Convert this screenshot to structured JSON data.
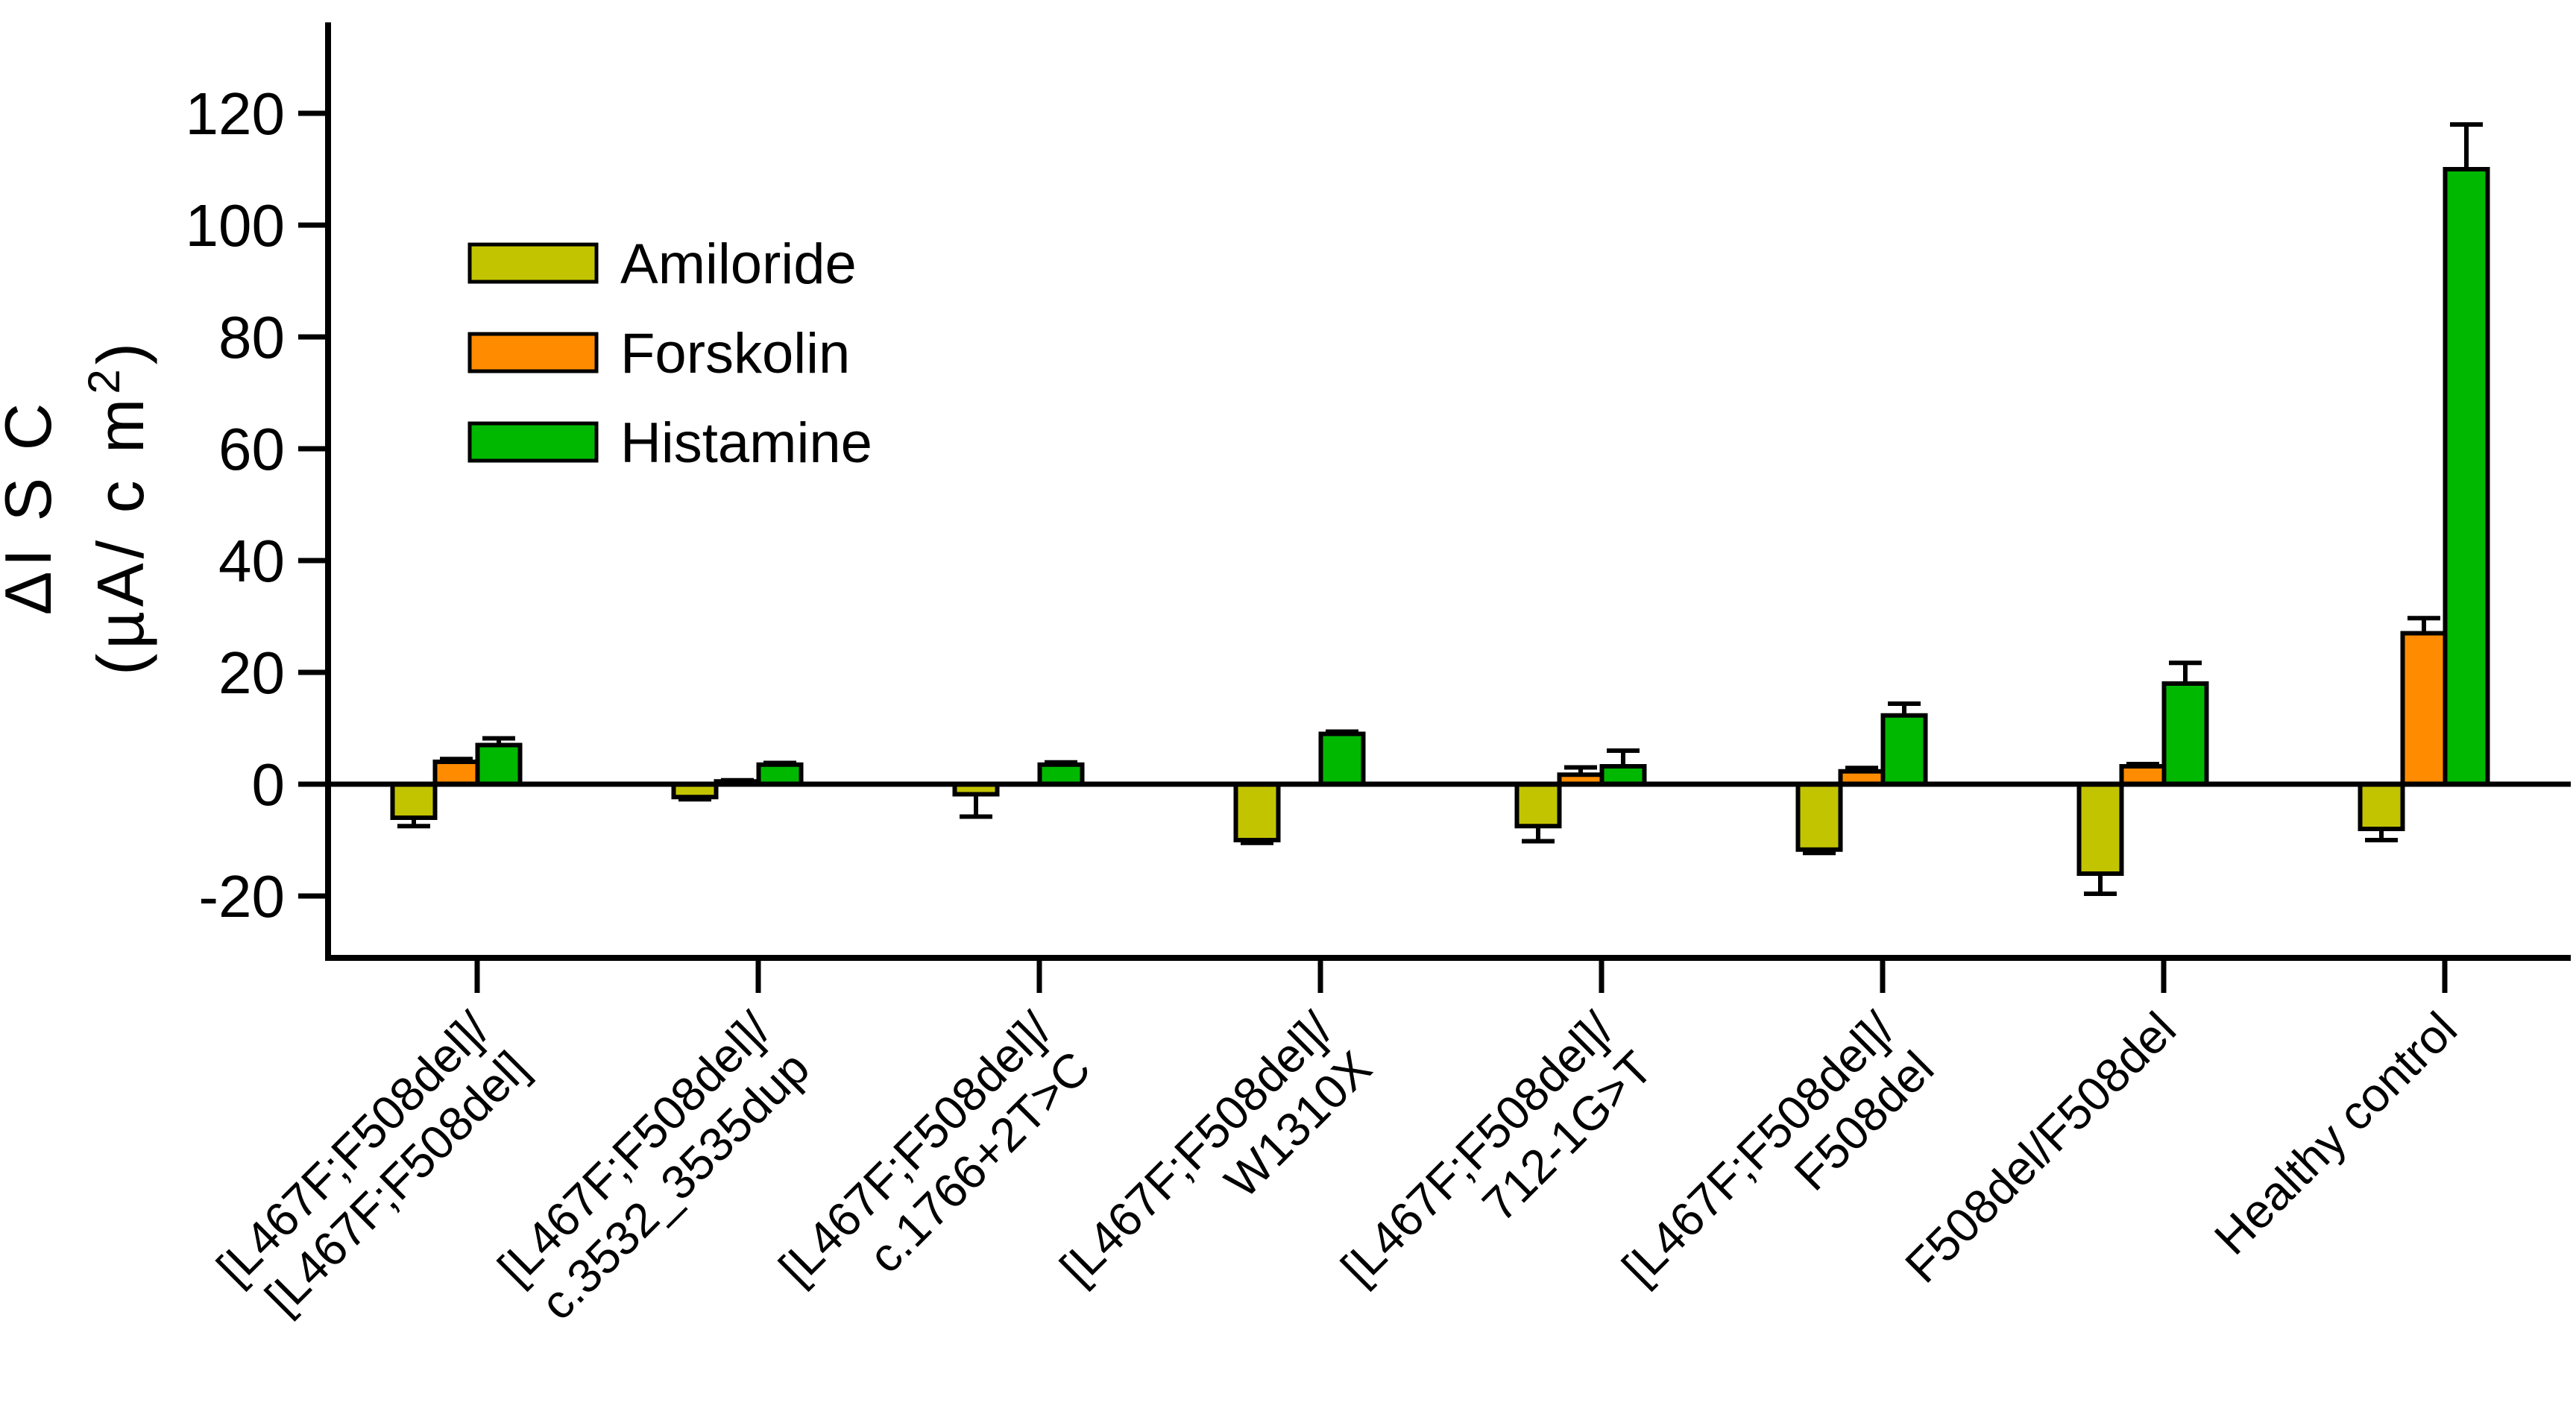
{
  "figure": {
    "background": "#FFFFFF",
    "axis_color": "#000000"
  },
  "chart_data": {
    "type": "bar",
    "title": "",
    "xlabel": "",
    "ylabel_line1": "ΔI S C",
    "ylabel_line2_pre": "(µA/ c m",
    "ylabel_line2_sup": "2",
    "ylabel_line2_post": ")",
    "ylim": [
      -31,
      136
    ],
    "yticks": [
      -20,
      0,
      20,
      40,
      60,
      80,
      100,
      120
    ],
    "grid": false,
    "legend_position": "top-left",
    "bar_outline_color": "#000000",
    "error_bar_color": "#000000",
    "categories": [
      [
        "[L467F;F508del]/",
        "[L467F;F508del]"
      ],
      [
        "[L467F;F508del]/",
        "c.3532_3535dup"
      ],
      [
        "[L467F;F508del]/",
        "c.1766+2T>C"
      ],
      [
        "[L467F;F508del]/",
        "W1310X"
      ],
      [
        "[L467F;F508del]/",
        "712-1G>T"
      ],
      [
        "[L467F;F508del]/",
        "F508del"
      ],
      [
        "F508del/F508del"
      ],
      [
        "Healthy control"
      ]
    ],
    "series": [
      {
        "name": "Amiloride",
        "color": "#C3C400",
        "values": [
          -6.0,
          -2.3,
          -1.8,
          -10.0,
          -7.5,
          -11.7,
          -16.0,
          -8.0
        ],
        "errors": [
          1.5,
          0.4,
          4.0,
          0.5,
          2.7,
          0.6,
          3.6,
          2.0
        ]
      },
      {
        "name": "Forskolin",
        "color": "#FF8C00",
        "values": [
          4.0,
          0.5,
          0,
          0,
          1.7,
          2.3,
          3.2,
          27.0
        ],
        "errors": [
          0.5,
          0.2,
          0,
          0,
          1.3,
          0.6,
          0.4,
          2.7
        ]
      },
      {
        "name": "Histamine",
        "color": "#00B800",
        "values": [
          7.0,
          3.5,
          3.5,
          9.0,
          3.2,
          12.3,
          18.0,
          110.0
        ],
        "errors": [
          1.2,
          0.3,
          0.4,
          0.4,
          2.8,
          2.1,
          3.7,
          8.0
        ]
      }
    ]
  }
}
